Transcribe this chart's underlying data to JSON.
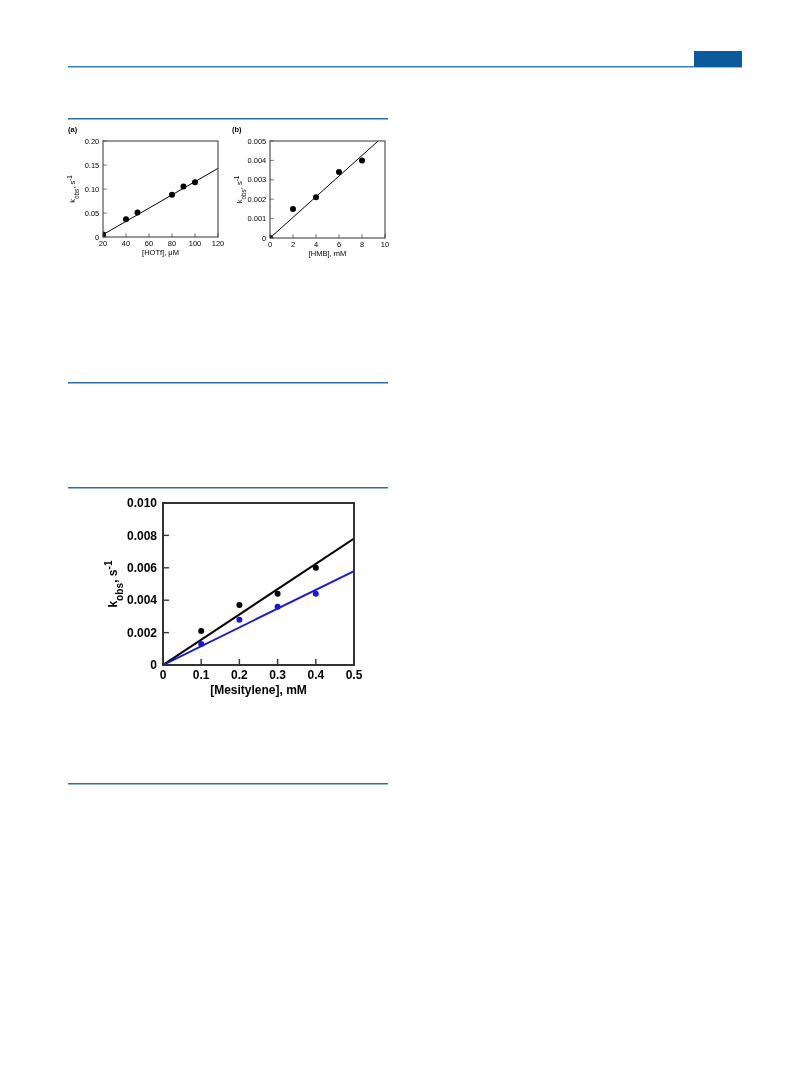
{
  "chart_data": [
    {
      "type": "scatter",
      "title": "(a)",
      "xlabel": "[HOTf], μM",
      "ylabel": "k$_{obs}$, s$^{-1}$",
      "xlim": [
        20,
        120
      ],
      "ylim": [
        0,
        0.2
      ],
      "xticks": [
        20,
        40,
        60,
        80,
        100,
        120
      ],
      "yticks": [
        0,
        0.05,
        {
          "value": 0.1,
          "label": "0.10"
        },
        0.15,
        {
          "value": 0.2,
          "label": "0.20"
        }
      ],
      "series": [
        {
          "marker": "circle",
          "color": "#000000",
          "x": [
            20,
            40,
            50,
            80,
            90,
            100
          ],
          "values": [
            0.005,
            0.037,
            0.051,
            0.088,
            0.105,
            0.114
          ]
        },
        {
          "type": "line",
          "color": "#000000",
          "x": [
            20,
            120
          ],
          "values": [
            0.005,
            0.143
          ]
        }
      ]
    },
    {
      "type": "scatter",
      "title": "(b)",
      "xlabel": "[HMB], mM",
      "ylabel": "k$_{obs}$, s$^{-1}$",
      "xlim": [
        0,
        10
      ],
      "ylim": [
        0,
        0.005
      ],
      "xticks": [
        0,
        2,
        4,
        6,
        8,
        10
      ],
      "yticks": [
        0,
        0.001,
        0.002,
        0.003,
        0.004,
        0.005
      ],
      "series": [
        {
          "marker": "circle",
          "color": "#000000",
          "x": [
            0,
            2,
            4,
            6,
            8
          ],
          "values": [
            0,
            0.0015,
            0.0021,
            0.0034,
            0.004
          ]
        },
        {
          "type": "line",
          "color": "#000000",
          "x": [
            0,
            9.4
          ],
          "values": [
            0,
            0.005
          ]
        }
      ]
    },
    {
      "type": "scatter",
      "xlabel": "[Mesitylene], mM",
      "ylabel": "k$_{obs}$, s$^{-1}$",
      "xlim": [
        0,
        0.5
      ],
      "ylim": [
        0,
        0.01
      ],
      "xticks": [
        0,
        0.1,
        0.2,
        0.3,
        0.4,
        0.5
      ],
      "yticks": [
        0,
        0.002,
        0.004,
        0.006,
        0.008,
        {
          "value": 0.01,
          "label": "0.010"
        }
      ],
      "series": [
        {
          "marker": "circle",
          "color": "#000000",
          "x": [
            0.1,
            0.2,
            0.3,
            0.4
          ],
          "values": [
            0.0021,
            0.0037,
            0.0044,
            0.006
          ]
        },
        {
          "marker": "circle",
          "color": "#1a1ad6",
          "x": [
            0.1,
            0.2,
            0.3,
            0.4
          ],
          "values": [
            0.0013,
            0.0028,
            0.0036,
            0.0044
          ]
        },
        {
          "type": "line",
          "color": "#000000",
          "x": [
            0,
            0.5
          ],
          "values": [
            0,
            0.0078
          ]
        },
        {
          "type": "line",
          "color": "#1a1ad6",
          "x": [
            0,
            0.5
          ],
          "values": [
            0,
            0.0058
          ]
        }
      ]
    }
  ]
}
